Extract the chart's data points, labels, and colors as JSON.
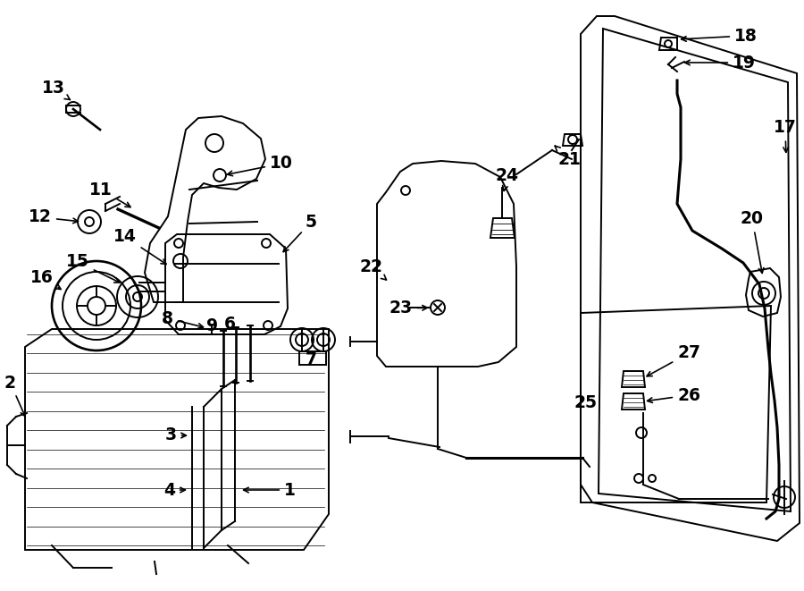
{
  "bg_color": "#ffffff",
  "line_color": "#000000",
  "lw": 1.4,
  "label_fs": 13.5
}
